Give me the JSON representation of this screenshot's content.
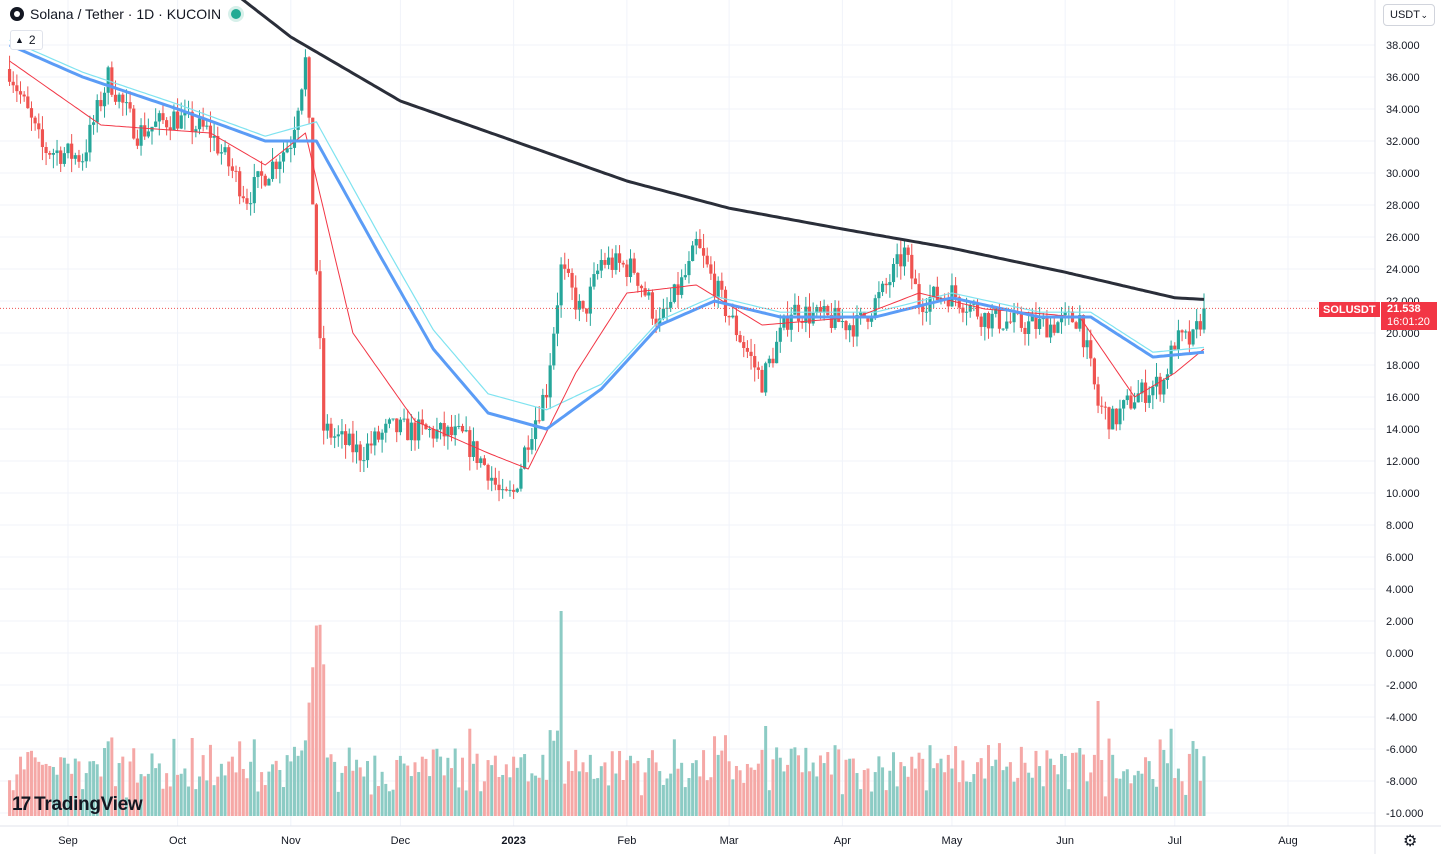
{
  "header": {
    "title": "Solana / Tether · 1D · KUCOIN",
    "indicator_count": "2",
    "currency_selector": "USDT"
  },
  "brand": {
    "name": "TradingView",
    "mark": "17"
  },
  "last_price": {
    "ticker": "SOLUSDT",
    "price": "21.538",
    "countdown": "16:01:20",
    "color": "#f23645"
  },
  "chart_data": {
    "type": "candlestick",
    "title": "Solana / Tether · 1D · KUCOIN",
    "xlabel": "",
    "ylabel": "",
    "x_ticks": [
      "Sep",
      "Oct",
      "Nov",
      "Dec",
      "2023",
      "Feb",
      "Mar",
      "Apr",
      "May",
      "Jun",
      "Jul",
      "Aug"
    ],
    "y_ticks": [
      "38.000",
      "36.000",
      "34.000",
      "32.000",
      "30.000",
      "28.000",
      "26.000",
      "24.000",
      "22.000",
      "20.000",
      "18.000",
      "16.000",
      "14.000",
      "12.000",
      "10.000",
      "8.000",
      "6.000",
      "4.000",
      "2.000",
      "0.000",
      "-2.000",
      "-4.000",
      "-6.000",
      "-8.000",
      "-10.000"
    ],
    "ylim": [
      -10.5,
      38.5
    ],
    "grid": true,
    "colors": {
      "up": "#26a69a",
      "down": "#ef5350",
      "ma_fast": "#f23645",
      "ma_mid": "#5b9cf6",
      "ma_mid_thin": "#7fe3f0",
      "ma_slow": "#2a2e39",
      "volume_up": "#8ccbc4",
      "volume_down": "#f5a8a6"
    },
    "price_keypoints": [
      {
        "date": "2022-08-16",
        "close": 36.5
      },
      {
        "date": "2022-08-25",
        "close": 31.5
      },
      {
        "date": "2022-09-05",
        "close": 31.0
      },
      {
        "date": "2022-09-12",
        "close": 36.0
      },
      {
        "date": "2022-09-20",
        "close": 32.5
      },
      {
        "date": "2022-09-30",
        "close": 33.5
      },
      {
        "date": "2022-10-10",
        "close": 32.5
      },
      {
        "date": "2022-10-20",
        "close": 28.5
      },
      {
        "date": "2022-11-01",
        "close": 32.0
      },
      {
        "date": "2022-11-05",
        "close": 37.0
      },
      {
        "date": "2022-11-08",
        "close": 24.0
      },
      {
        "date": "2022-11-10",
        "close": 14.0
      },
      {
        "date": "2022-11-20",
        "close": 12.5
      },
      {
        "date": "2022-11-28",
        "close": 14.0
      },
      {
        "date": "2022-12-10",
        "close": 13.8
      },
      {
        "date": "2022-12-18",
        "close": 13.5
      },
      {
        "date": "2022-12-25",
        "close": 11.5
      },
      {
        "date": "2022-12-29",
        "close": 9.5
      },
      {
        "date": "2023-01-01",
        "close": 10.0
      },
      {
        "date": "2023-01-05",
        "close": 13.5
      },
      {
        "date": "2023-01-10",
        "close": 16.5
      },
      {
        "date": "2023-01-14",
        "close": 24.0
      },
      {
        "date": "2023-01-20",
        "close": 21.0
      },
      {
        "date": "2023-01-25",
        "close": 24.5
      },
      {
        "date": "2023-02-03",
        "close": 24.0
      },
      {
        "date": "2023-02-10",
        "close": 20.5
      },
      {
        "date": "2023-02-18",
        "close": 24.0
      },
      {
        "date": "2023-02-20",
        "close": 25.5
      },
      {
        "date": "2023-02-27",
        "close": 22.0
      },
      {
        "date": "2023-03-10",
        "close": 17.0
      },
      {
        "date": "2023-03-18",
        "close": 21.5
      },
      {
        "date": "2023-03-25",
        "close": 21.0
      },
      {
        "date": "2023-04-05",
        "close": 20.5
      },
      {
        "date": "2023-04-12",
        "close": 22.5
      },
      {
        "date": "2023-04-18",
        "close": 25.0
      },
      {
        "date": "2023-04-22",
        "close": 22.0
      },
      {
        "date": "2023-05-01",
        "close": 22.5
      },
      {
        "date": "2023-05-10",
        "close": 21.0
      },
      {
        "date": "2023-05-20",
        "close": 20.5
      },
      {
        "date": "2023-05-28",
        "close": 20.5
      },
      {
        "date": "2023-06-05",
        "close": 21.0
      },
      {
        "date": "2023-06-10",
        "close": 15.5
      },
      {
        "date": "2023-06-14",
        "close": 14.5
      },
      {
        "date": "2023-06-20",
        "close": 16.0
      },
      {
        "date": "2023-06-28",
        "close": 17.0
      },
      {
        "date": "2023-07-01",
        "close": 19.5
      },
      {
        "date": "2023-07-06",
        "close": 19.5
      },
      {
        "date": "2023-07-09",
        "close": 21.5
      }
    ],
    "ma_slow_keypoints": [
      {
        "date": "2022-09-01",
        "value": 52.0
      },
      {
        "date": "2022-10-01",
        "value": 44.0
      },
      {
        "date": "2022-11-01",
        "value": 38.5
      },
      {
        "date": "2022-12-01",
        "value": 34.5
      },
      {
        "date": "2023-01-01",
        "value": 32.0
      },
      {
        "date": "2023-02-01",
        "value": 29.5
      },
      {
        "date": "2023-03-01",
        "value": 27.8
      },
      {
        "date": "2023-04-01",
        "value": 26.5
      },
      {
        "date": "2023-05-01",
        "value": 25.3
      },
      {
        "date": "2023-06-01",
        "value": 23.8
      },
      {
        "date": "2023-07-01",
        "value": 22.2
      },
      {
        "date": "2023-07-09",
        "value": 22.1
      }
    ],
    "ma_mid_keypoints": [
      {
        "date": "2022-08-16",
        "value": 38.0
      },
      {
        "date": "2022-09-05",
        "value": 36.0
      },
      {
        "date": "2022-10-01",
        "value": 34.0
      },
      {
        "date": "2022-10-25",
        "value": 32.0
      },
      {
        "date": "2022-11-08",
        "value": 32.0
      },
      {
        "date": "2022-11-25",
        "value": 25.0
      },
      {
        "date": "2022-12-10",
        "value": 19.0
      },
      {
        "date": "2022-12-25",
        "value": 15.0
      },
      {
        "date": "2023-01-10",
        "value": 14.0
      },
      {
        "date": "2023-01-25",
        "value": 16.5
      },
      {
        "date": "2023-02-10",
        "value": 20.5
      },
      {
        "date": "2023-02-25",
        "value": 22.0
      },
      {
        "date": "2023-03-15",
        "value": 21.0
      },
      {
        "date": "2023-04-10",
        "value": 21.0
      },
      {
        "date": "2023-05-01",
        "value": 22.2
      },
      {
        "date": "2023-05-25",
        "value": 21.0
      },
      {
        "date": "2023-06-08",
        "value": 21.0
      },
      {
        "date": "2023-06-25",
        "value": 18.5
      },
      {
        "date": "2023-07-09",
        "value": 18.8
      }
    ],
    "ma_fast_keypoints": [
      {
        "date": "2022-08-16",
        "value": 37.0
      },
      {
        "date": "2022-09-10",
        "value": 33.0
      },
      {
        "date": "2022-10-10",
        "value": 32.5
      },
      {
        "date": "2022-10-25",
        "value": 30.5
      },
      {
        "date": "2022-11-05",
        "value": 32.5
      },
      {
        "date": "2022-11-18",
        "value": 20.0
      },
      {
        "date": "2022-12-05",
        "value": 14.5
      },
      {
        "date": "2022-12-25",
        "value": 12.5
      },
      {
        "date": "2023-01-05",
        "value": 11.5
      },
      {
        "date": "2023-01-18",
        "value": 17.5
      },
      {
        "date": "2023-02-01",
        "value": 22.5
      },
      {
        "date": "2023-02-20",
        "value": 23.0
      },
      {
        "date": "2023-03-10",
        "value": 20.5
      },
      {
        "date": "2023-04-05",
        "value": 21.0
      },
      {
        "date": "2023-04-22",
        "value": 22.5
      },
      {
        "date": "2023-05-10",
        "value": 21.5
      },
      {
        "date": "2023-06-05",
        "value": 21.0
      },
      {
        "date": "2023-06-20",
        "value": 16.0
      },
      {
        "date": "2023-07-01",
        "value": 17.5
      },
      {
        "date": "2023-07-09",
        "value": 19.0
      }
    ]
  }
}
